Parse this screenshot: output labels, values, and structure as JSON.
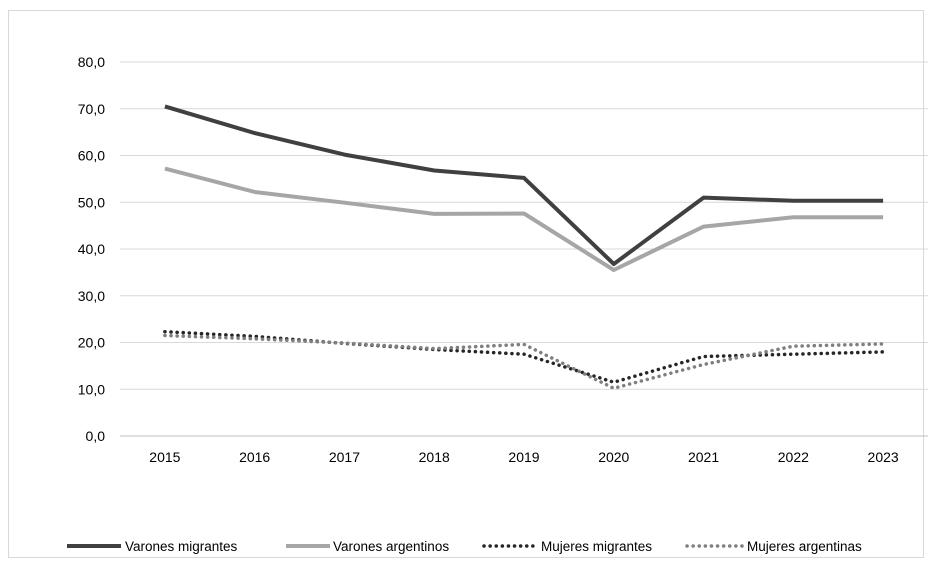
{
  "chart_data": {
    "type": "line",
    "title": "",
    "xlabel": "",
    "ylabel": "",
    "categories": [
      "2015",
      "2016",
      "2017",
      "2018",
      "2019",
      "2020",
      "2021",
      "2022",
      "2023"
    ],
    "ylim": [
      0,
      80
    ],
    "yticks": [
      "0,0",
      "10,0",
      "20,0",
      "30,0",
      "40,0",
      "50,0",
      "60,0",
      "70,0",
      "80,0"
    ],
    "grid": "horizontal",
    "legend_position": "bottom",
    "series": [
      {
        "name": "Varones migrantes",
        "values": [
          70.5,
          64.8,
          60.2,
          56.8,
          55.2,
          36.8,
          51.0,
          50.3,
          50.3
        ],
        "color": "#404040",
        "style": "solid"
      },
      {
        "name": "Varones argentinos",
        "values": [
          57.2,
          52.2,
          49.9,
          47.5,
          47.6,
          35.5,
          44.8,
          46.8,
          46.8
        ],
        "color": "#a6a6a6",
        "style": "solid"
      },
      {
        "name": "Mujeres migrantes",
        "values": [
          22.3,
          21.3,
          19.8,
          18.5,
          17.5,
          11.5,
          17.0,
          17.5,
          18.0
        ],
        "color": "#262626",
        "style": "dotted"
      },
      {
        "name": "Mujeres argentinas",
        "values": [
          21.5,
          20.8,
          19.9,
          18.7,
          19.6,
          10.2,
          15.3,
          19.2,
          19.7
        ],
        "color": "#7f7f7f",
        "style": "dotted"
      }
    ]
  }
}
